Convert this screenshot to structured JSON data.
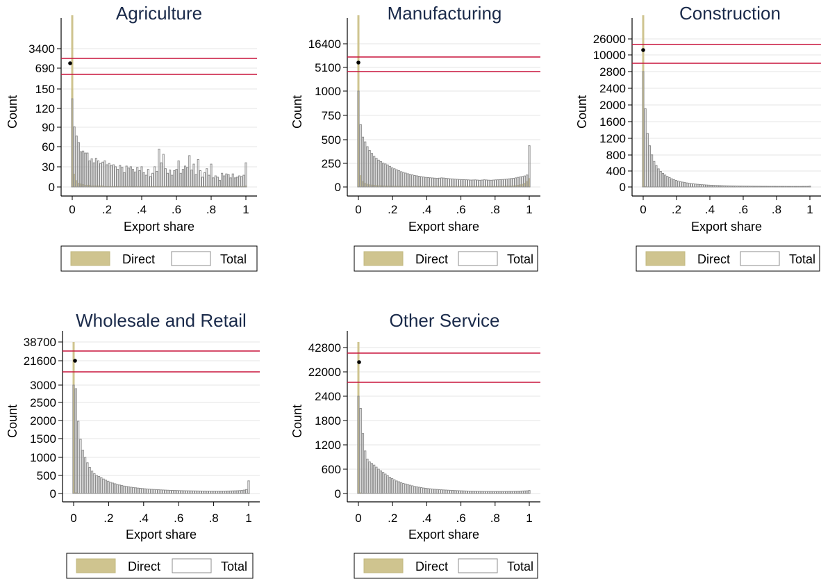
{
  "figure": {
    "colors": {
      "direct_fill": "#cfc48f",
      "direct_stroke": "#c2b87f",
      "total_stroke": "#8c8c8c",
      "axis": "#000000",
      "grid": "#e6e6e6",
      "title": "#1a2a4a",
      "threshold_line": "#c8143c",
      "marker": "#000000"
    }
  },
  "chart_data": [
    {
      "type": "bar",
      "title": "Agriculture",
      "xlabel": "Export share",
      "ylabel": "Count",
      "xlim": [
        0,
        1
      ],
      "x_ticks": [
        "0",
        ".2",
        ".4",
        ".6",
        ".8",
        "1"
      ],
      "y_ticks": [
        "0",
        "30",
        "60",
        "90",
        "120",
        "150",
        "690",
        "3400"
      ],
      "y_scale": "broken (compressed above 150)",
      "grid": true,
      "legend": {
        "position": "bottom",
        "entries": [
          "Direct",
          "Total"
        ]
      },
      "series": [
        {
          "name": "Total",
          "values": [
            135,
            92,
            78,
            68,
            54,
            55,
            52,
            52,
            40,
            43,
            37,
            44,
            40,
            36,
            38,
            40,
            34,
            36,
            33,
            34,
            31,
            27,
            33,
            30,
            22,
            32,
            29,
            31,
            27,
            23,
            30,
            25,
            31,
            22,
            18,
            27,
            16,
            21,
            31,
            24,
            58,
            37,
            50,
            28,
            21,
            26,
            18,
            25,
            27,
            40,
            21,
            27,
            32,
            30,
            48,
            26,
            35,
            19,
            42,
            25,
            15,
            22,
            28,
            18,
            35,
            14,
            17,
            15,
            10,
            21,
            17,
            20,
            19,
            14,
            20,
            14,
            15,
            17,
            16,
            18,
            37
          ]
        },
        {
          "name": "Direct",
          "values": [
            150,
            20,
            10,
            6,
            5,
            4,
            3,
            3,
            3,
            2,
            2,
            2,
            2,
            2,
            2,
            1,
            1,
            1,
            1,
            1,
            1,
            1,
            1,
            1,
            1,
            1,
            1,
            1,
            1,
            1,
            1,
            1,
            1,
            1,
            1,
            1,
            1,
            1,
            1,
            1,
            1,
            1,
            1,
            1,
            1,
            1,
            1,
            1,
            1,
            1,
            1,
            1,
            1,
            1,
            1,
            1,
            1,
            1,
            1,
            1,
            1,
            1,
            1,
            1,
            1,
            1,
            1,
            1,
            1,
            1,
            1,
            1,
            1,
            1,
            1,
            1,
            1,
            1,
            1,
            1,
            2
          ]
        }
      ],
      "spike_at_zero": {
        "direct": 3400,
        "total": 690
      },
      "reference_lines": [
        3400,
        690
      ]
    },
    {
      "type": "bar",
      "title": "Manufacturing",
      "xlabel": "Export share",
      "ylabel": "Count",
      "xlim": [
        0,
        1
      ],
      "x_ticks": [
        "0",
        ".2",
        ".4",
        ".6",
        ".8",
        "1"
      ],
      "y_ticks": [
        "0",
        "250",
        "500",
        "750",
        "1000",
        "5100",
        "16400"
      ],
      "y_scale": "broken (compressed above 1000)",
      "grid": true,
      "legend": {
        "position": "bottom",
        "entries": [
          "Direct",
          "Total"
        ]
      },
      "series": [
        {
          "name": "Total",
          "values": [
            1000,
            650,
            520,
            470,
            420,
            380,
            350,
            320,
            300,
            280,
            265,
            250,
            240,
            230,
            215,
            200,
            190,
            180,
            170,
            160,
            152,
            145,
            138,
            132,
            126,
            120,
            116,
            112,
            108,
            104,
            100,
            98,
            96,
            94,
            92,
            90,
            92,
            95,
            93,
            90,
            88,
            85,
            84,
            82,
            80,
            78,
            77,
            76,
            75,
            74,
            72,
            73,
            74,
            72,
            70,
            72,
            75,
            73,
            71,
            70,
            72,
            74,
            75,
            76,
            78,
            80,
            82,
            85,
            88,
            90,
            95,
            100,
            105,
            110,
            115,
            125,
            430
          ]
        },
        {
          "name": "Direct",
          "values": [
            1000,
            120,
            60,
            40,
            30,
            25,
            22,
            20,
            18,
            16,
            15,
            14,
            13,
            12,
            12,
            11,
            10,
            10,
            10,
            9,
            9,
            9,
            9,
            8,
            8,
            8,
            8,
            8,
            8,
            8,
            8,
            8,
            8,
            8,
            8,
            8,
            8,
            8,
            8,
            8,
            8,
            8,
            8,
            8,
            8,
            8,
            8,
            8,
            8,
            8,
            8,
            8,
            8,
            8,
            8,
            8,
            8,
            8,
            8,
            8,
            8,
            8,
            8,
            9,
            9,
            10,
            10,
            11,
            12,
            14,
            16,
            20,
            25,
            30,
            40,
            60,
            90
          ]
        }
      ],
      "spike_at_zero": {
        "direct": 16400,
        "total": 5100
      },
      "reference_lines": [
        16400,
        5100
      ]
    },
    {
      "type": "bar",
      "title": "Construction",
      "xlabel": "Export share",
      "ylabel": "Count",
      "xlim": [
        0,
        1
      ],
      "x_ticks": [
        "0",
        ".2",
        ".4",
        ".6",
        ".8",
        "1"
      ],
      "y_ticks": [
        "0",
        "400",
        "800",
        "1200",
        "1600",
        "2000",
        "2400",
        "2800",
        "10000",
        "26000"
      ],
      "y_scale": "broken (compressed above 2800)",
      "grid": true,
      "legend": {
        "position": "bottom",
        "entries": [
          "Direct",
          "Total"
        ]
      },
      "series": [
        {
          "name": "Total",
          "values": [
            2800,
            1900,
            1300,
            1000,
            780,
            620,
            520,
            440,
            380,
            330,
            290,
            260,
            230,
            200,
            180,
            160,
            145,
            130,
            118,
            108,
            98,
            90,
            82,
            76,
            70,
            65,
            60,
            56,
            52,
            48,
            45,
            42,
            40,
            38,
            36,
            34,
            32,
            30,
            28,
            27,
            26,
            25,
            24,
            23,
            22,
            22,
            21,
            20,
            20,
            19,
            19,
            18,
            18,
            18,
            17,
            17,
            17,
            16,
            16,
            16,
            16,
            15,
            15,
            15,
            15,
            15,
            14,
            14,
            14,
            14,
            14,
            14,
            14,
            15,
            15,
            15,
            20
          ]
        },
        {
          "name": "Direct",
          "values": [
            2800,
            15,
            6,
            4,
            3,
            2,
            2,
            1,
            1,
            1,
            1,
            1,
            1,
            1,
            1,
            1,
            1,
            1,
            1,
            1,
            1,
            1,
            1,
            1,
            1,
            1,
            1,
            1,
            1,
            1,
            1,
            1,
            1,
            1,
            1,
            1,
            1,
            1,
            1,
            1,
            1,
            1,
            1,
            1,
            1,
            1,
            1,
            1,
            1,
            1,
            1,
            1,
            1,
            1,
            1,
            1,
            1,
            1,
            1,
            1,
            1,
            1,
            1,
            1,
            1,
            1,
            1,
            1,
            1,
            1,
            1,
            1,
            1,
            1,
            1,
            1,
            1
          ]
        }
      ],
      "spike_at_zero": {
        "direct": 26000,
        "total": 10000
      },
      "reference_lines": [
        26000,
        10000
      ]
    },
    {
      "type": "bar",
      "title": "Wholesale and Retail",
      "xlabel": "Export share",
      "ylabel": "Count",
      "xlim": [
        0,
        1
      ],
      "x_ticks": [
        "0",
        ".2",
        ".4",
        ".6",
        ".8",
        "1"
      ],
      "y_ticks": [
        "0",
        "500",
        "1000",
        "1500",
        "2000",
        "2500",
        "3000",
        "21600",
        "38700"
      ],
      "y_scale": "broken (compressed above 3000)",
      "grid": true,
      "legend": {
        "position": "bottom",
        "entries": [
          "Direct",
          "Total"
        ]
      },
      "series": [
        {
          "name": "Total",
          "values": [
            3000,
            2900,
            2000,
            1500,
            1200,
            1000,
            850,
            720,
            620,
            550,
            500,
            470,
            440,
            400,
            370,
            340,
            310,
            290,
            270,
            250,
            235,
            220,
            205,
            195,
            185,
            175,
            165,
            158,
            150,
            143,
            137,
            131,
            125,
            120,
            116,
            112,
            108,
            104,
            100,
            97,
            94,
            91,
            88,
            86,
            84,
            82,
            80,
            78,
            76,
            75,
            74,
            73,
            72,
            71,
            70,
            69,
            68,
            68,
            67,
            67,
            66,
            66,
            66,
            66,
            67,
            67,
            68,
            69,
            70,
            72,
            74,
            76,
            80,
            85,
            95,
            110,
            350
          ]
        },
        {
          "name": "Direct",
          "values": [
            3000,
            25,
            10,
            6,
            4,
            3,
            3,
            2,
            2,
            2,
            2,
            1,
            1,
            1,
            1,
            1,
            1,
            1,
            1,
            1,
            1,
            1,
            1,
            1,
            1,
            1,
            1,
            1,
            1,
            1,
            1,
            1,
            1,
            1,
            1,
            1,
            1,
            1,
            1,
            1,
            1,
            1,
            1,
            1,
            1,
            1,
            1,
            1,
            1,
            1,
            1,
            1,
            1,
            1,
            1,
            1,
            1,
            1,
            1,
            1,
            1,
            1,
            1,
            1,
            1,
            1,
            1,
            1,
            1,
            1,
            1,
            1,
            1,
            1,
            1,
            2,
            10
          ]
        }
      ],
      "spike_at_zero": {
        "direct": 38700,
        "total": 21600
      },
      "reference_lines": [
        38700,
        21600
      ]
    },
    {
      "type": "bar",
      "title": "Other Service",
      "xlabel": "Export share",
      "ylabel": "Count",
      "xlim": [
        0,
        1
      ],
      "x_ticks": [
        "0",
        ".2",
        ".4",
        ".6",
        ".8",
        "1"
      ],
      "y_ticks": [
        "0",
        "600",
        "1200",
        "1800",
        "2400",
        "22000",
        "42800"
      ],
      "y_scale": "broken (compressed above 2400)",
      "grid": true,
      "legend": {
        "position": "bottom",
        "entries": [
          "Direct",
          "Total"
        ]
      },
      "series": [
        {
          "name": "Total",
          "values": [
            2400,
            2100,
            1480,
            1050,
            850,
            780,
            740,
            700,
            650,
            600,
            560,
            520,
            480,
            440,
            400,
            370,
            340,
            310,
            290,
            270,
            250,
            235,
            220,
            205,
            190,
            175,
            165,
            155,
            145,
            135,
            128,
            122,
            116,
            110,
            105,
            100,
            96,
            92,
            88,
            85,
            82,
            79,
            76,
            73,
            70,
            68,
            66,
            64,
            62,
            60,
            58,
            57,
            56,
            55,
            54,
            53,
            52,
            52,
            51,
            51,
            50,
            50,
            50,
            50,
            51,
            51,
            52,
            53,
            54,
            55,
            56,
            58,
            60,
            62,
            64,
            66,
            75
          ]
        },
        {
          "name": "Direct",
          "values": [
            2400,
            20,
            8,
            5,
            3,
            2,
            2,
            2,
            1,
            1,
            1,
            1,
            1,
            1,
            1,
            1,
            1,
            1,
            1,
            1,
            1,
            1,
            1,
            1,
            1,
            1,
            1,
            1,
            1,
            1,
            1,
            1,
            1,
            1,
            1,
            1,
            1,
            1,
            1,
            1,
            1,
            1,
            1,
            1,
            1,
            1,
            1,
            1,
            1,
            1,
            1,
            1,
            1,
            1,
            1,
            1,
            1,
            1,
            1,
            1,
            1,
            1,
            1,
            1,
            1,
            1,
            1,
            1,
            1,
            1,
            1,
            1,
            1,
            1,
            1,
            1,
            2
          ]
        }
      ],
      "spike_at_zero": {
        "direct": 42800,
        "total": 22000
      },
      "reference_lines": [
        42800,
        22000
      ]
    }
  ]
}
